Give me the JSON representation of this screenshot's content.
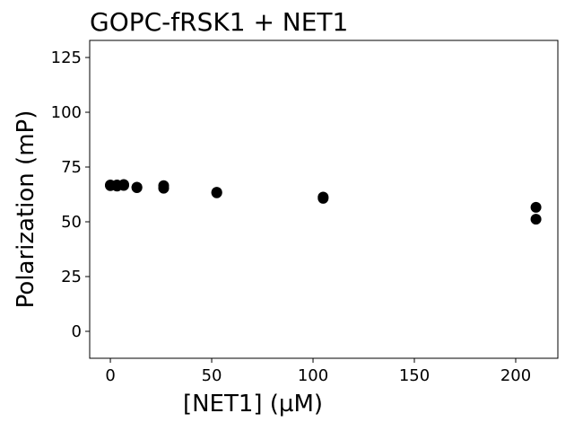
{
  "chart_data": {
    "type": "scatter",
    "title": "GOPC-fRSK1 + NET1",
    "xlabel": "[NET1] (µM)",
    "ylabel": "Polarization (mP)",
    "xlim": [
      -10.2,
      220.8
    ],
    "ylim": [
      -12.3,
      132.8
    ],
    "xticks": [
      0,
      50,
      100,
      150,
      200
    ],
    "yticks": [
      0,
      25,
      50,
      75,
      100,
      125
    ],
    "grid": false,
    "marker_color": "#000000",
    "series": [
      {
        "x": [
          0,
          0,
          3.3,
          3.3,
          6.6,
          6.6,
          13.1,
          13.1,
          26.3,
          26.3,
          52.5,
          52.5,
          105,
          105,
          210,
          210
        ],
        "y": [
          66.8,
          66.5,
          66.3,
          66.8,
          67.0,
          66.6,
          65.6,
          65.8,
          66.5,
          65.3,
          63.5,
          63.2,
          61.3,
          60.7,
          56.6,
          51.2
        ]
      }
    ]
  }
}
